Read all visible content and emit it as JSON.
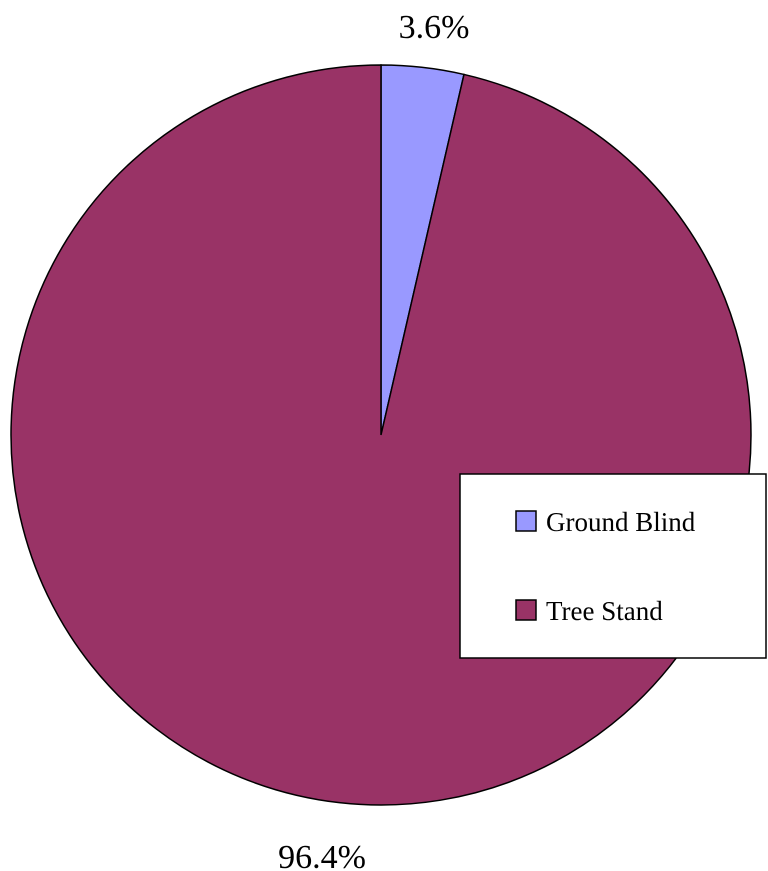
{
  "chart_data": {
    "type": "pie",
    "categories": [
      "Ground Blind",
      "Tree Stand"
    ],
    "values": [
      3.6,
      96.4
    ],
    "value_labels": [
      "3.6%",
      "96.4%"
    ],
    "colors": [
      "#9999ff",
      "#993366"
    ],
    "start": "12 o'clock",
    "direction": "clockwise",
    "legend": {
      "placement": "right",
      "entries": [
        "Ground Blind",
        "Tree Stand"
      ]
    }
  }
}
